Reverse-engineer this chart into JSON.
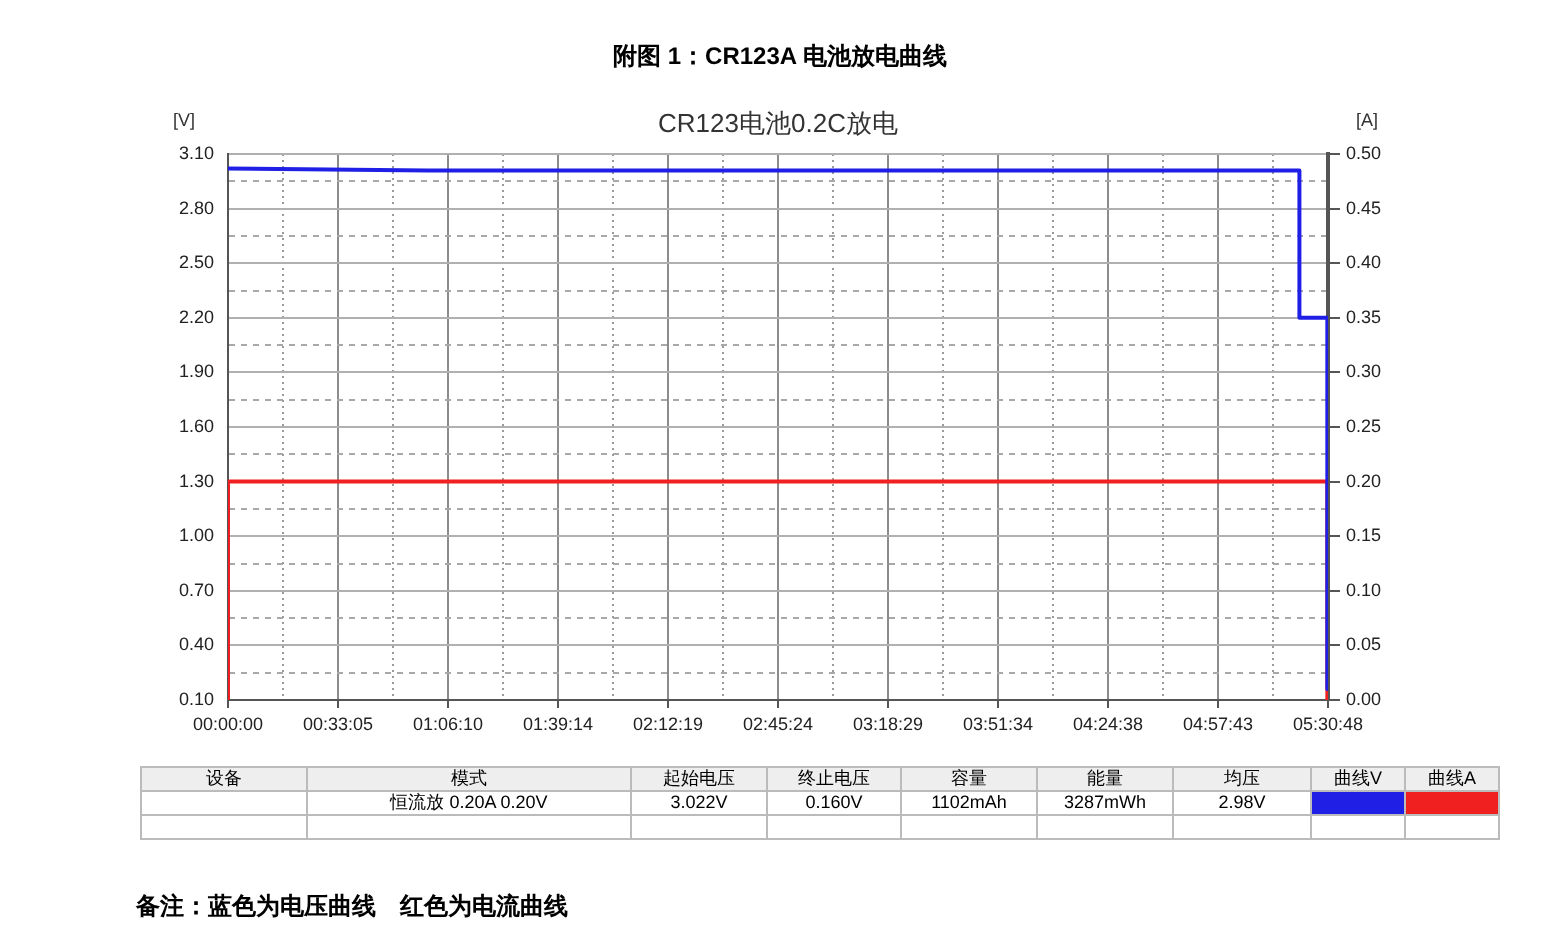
{
  "chart_data": {
    "type": "line",
    "title": "附图 1：CR123A 电池放电曲线",
    "subtitle": "CR123电池0.2C放电",
    "ylabel": "[V]",
    "y2label": "[A]",
    "series": [
      {
        "name": "曲线V",
        "color": "#1f1fe6",
        "x": [
          0,
          1.0,
          2.0,
          3.0,
          4.0,
          5.37,
          5.37,
          5.51,
          5.51
        ],
        "values": [
          3.02,
          3.01,
          3.01,
          3.01,
          3.01,
          3.01,
          2.2,
          2.2,
          0.16
        ]
      },
      {
        "name": "曲线A",
        "color": "#f02020",
        "axis": "y2",
        "x": [
          0,
          0,
          5.51,
          5.51
        ],
        "values": [
          0,
          0.2,
          0.2,
          0
        ]
      }
    ],
    "xlim": [
      0,
      5.5133
    ],
    "xticks": [
      {
        "value": 0,
        "label": "00:00:00"
      },
      {
        "value": 0.2757,
        "label": null
      },
      {
        "value": 0.5514,
        "label": "00:33:05"
      },
      {
        "value": 0.8271,
        "label": null
      },
      {
        "value": 1.1028,
        "label": "01:06:10"
      },
      {
        "value": 1.3783,
        "label": null
      },
      {
        "value": 1.6539,
        "label": "01:39:14"
      },
      {
        "value": 1.9296,
        "label": null
      },
      {
        "value": 2.2053,
        "label": "02:12:19"
      },
      {
        "value": 2.481,
        "label": null
      },
      {
        "value": 2.7567,
        "label": "02:45:24"
      },
      {
        "value": 3.0324,
        "label": null
      },
      {
        "value": 3.3081,
        "label": "03:18:29"
      },
      {
        "value": 3.5838,
        "label": null
      },
      {
        "value": 3.8594,
        "label": "03:51:34"
      },
      {
        "value": 4.135,
        "label": null
      },
      {
        "value": 4.4106,
        "label": "04:24:38"
      },
      {
        "value": 4.6863,
        "label": null
      },
      {
        "value": 4.9619,
        "label": "04:57:43"
      },
      {
        "value": 5.2376,
        "label": null
      },
      {
        "value": 5.5133,
        "label": "05:30:48"
      }
    ],
    "ylim": [
      0.1,
      3.1
    ],
    "yticks": [
      {
        "value": 0.1,
        "label": "0.10"
      },
      {
        "value": 0.25,
        "label": null
      },
      {
        "value": 0.4,
        "label": "0.40"
      },
      {
        "value": 0.55,
        "label": null
      },
      {
        "value": 0.7,
        "label": "0.70"
      },
      {
        "value": 0.85,
        "label": null
      },
      {
        "value": 1.0,
        "label": "1.00"
      },
      {
        "value": 1.15,
        "label": null
      },
      {
        "value": 1.3,
        "label": "1.30"
      },
      {
        "value": 1.45,
        "label": null
      },
      {
        "value": 1.6,
        "label": "1.60"
      },
      {
        "value": 1.75,
        "label": null
      },
      {
        "value": 1.9,
        "label": "1.90"
      },
      {
        "value": 2.05,
        "label": null
      },
      {
        "value": 2.2,
        "label": "2.20"
      },
      {
        "value": 2.35,
        "label": null
      },
      {
        "value": 2.5,
        "label": "2.50"
      },
      {
        "value": 2.65,
        "label": null
      },
      {
        "value": 2.8,
        "label": "2.80"
      },
      {
        "value": 2.95,
        "label": null
      },
      {
        "value": 3.1,
        "label": "3.10"
      }
    ],
    "y2lim": [
      0,
      0.5
    ],
    "y2ticks": [
      {
        "value": 0,
        "label": "0.00"
      },
      {
        "value": 0.05,
        "label": "0.05"
      },
      {
        "value": 0.1,
        "label": "0.10"
      },
      {
        "value": 0.15,
        "label": "0.15"
      },
      {
        "value": 0.2,
        "label": "0.20"
      },
      {
        "value": 0.25,
        "label": "0.25"
      },
      {
        "value": 0.3,
        "label": "0.30"
      },
      {
        "value": 0.35,
        "label": "0.35"
      },
      {
        "value": 0.4,
        "label": "0.40"
      },
      {
        "value": 0.45,
        "label": "0.45"
      },
      {
        "value": 0.5,
        "label": "0.50"
      }
    ],
    "grid": true,
    "legend": "bottom",
    "annotations": [
      "设备",
      "模式",
      "起始电压",
      "终止电压",
      "容量",
      "能量",
      "均压",
      "恒流放  0.20A  0.20V",
      "3.022V",
      "0.160V",
      "1102mAh",
      "3287mWh",
      "2.98V",
      "备注：蓝色为电压曲线　红色为电流曲线"
    ]
  }
}
